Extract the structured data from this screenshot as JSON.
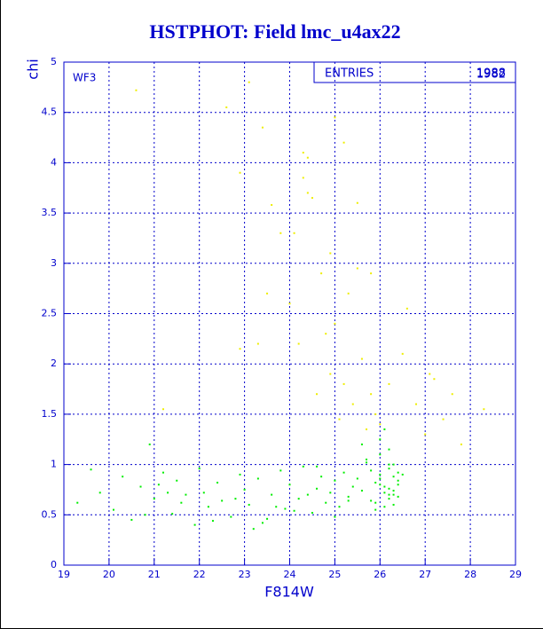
{
  "chart_data": {
    "type": "scatter",
    "title": "HSTPHOT: Field lmc_u4ax22",
    "x_label": "F814W",
    "y_label": "chi",
    "annotation": "WF3",
    "entries_label": "ENTRIES",
    "entries": [
      "1988",
      "1982"
    ],
    "xlim": [
      19,
      29
    ],
    "ylim": [
      0,
      5
    ],
    "xticks": [
      19,
      20,
      21,
      22,
      23,
      24,
      25,
      26,
      27,
      28,
      29
    ],
    "yticks": [
      0,
      0.5,
      1,
      1.5,
      2,
      2.5,
      3,
      3.5,
      4,
      4.5,
      5
    ],
    "grid": true,
    "series": [
      {
        "color": "#00ee00",
        "x": [
          19.3,
          19.6,
          19.8,
          20.1,
          20.3,
          20.5,
          20.7,
          20.9,
          21.0,
          21.2,
          21.4,
          21.5,
          21.7,
          21.9,
          22.0,
          22.2,
          22.4,
          22.5,
          22.7,
          22.9,
          23.0,
          23.1,
          23.3,
          23.4,
          23.6,
          23.8,
          23.9,
          24.0,
          24.2,
          24.3,
          24.5,
          24.6,
          24.7,
          24.8,
          24.9,
          25.0,
          25.1,
          25.2,
          25.3,
          25.4,
          25.5,
          25.6,
          25.7,
          25.8,
          25.9,
          26.0,
          26.1,
          26.2,
          26.3,
          26.4,
          26.0,
          26.1,
          26.2,
          26.3,
          26.4,
          25.9,
          26.0,
          26.2,
          26.3,
          26.1,
          25.8,
          25.9,
          26.0,
          26.2,
          26.3,
          26.4,
          26.1,
          25.7,
          26.0,
          26.2,
          20.8,
          21.6,
          22.3,
          23.2,
          24.1,
          24.4,
          25.0,
          23.7,
          22.8,
          21.3,
          21.1,
          22.1,
          23.5,
          24.6,
          25.3,
          25.6,
          26.5,
          26.4,
          26.3,
          26.2
        ],
        "values": [
          0.62,
          0.95,
          0.72,
          0.55,
          0.88,
          0.45,
          0.78,
          1.2,
          0.66,
          0.92,
          0.51,
          0.84,
          0.7,
          0.4,
          0.96,
          0.58,
          0.82,
          0.64,
          0.48,
          0.9,
          0.75,
          0.6,
          0.86,
          0.42,
          0.7,
          0.94,
          0.56,
          0.8,
          0.66,
          0.98,
          0.52,
          0.76,
          0.88,
          0.62,
          0.72,
          0.84,
          0.58,
          0.92,
          0.68,
          0.78,
          0.86,
          0.74,
          1.05,
          0.64,
          0.82,
          0.9,
          0.72,
          0.96,
          0.6,
          0.84,
          1.1,
          0.78,
          0.66,
          1.0,
          0.92,
          0.55,
          1.25,
          0.7,
          0.88,
          1.35,
          0.94,
          0.62,
          0.8,
          1.15,
          0.74,
          0.68,
          0.58,
          1.02,
          0.86,
          0.76,
          0.5,
          0.62,
          0.44,
          0.36,
          0.54,
          0.7,
          0.48,
          0.58,
          0.66,
          0.72,
          0.8,
          0.72,
          0.46,
          0.98,
          0.64,
          1.2,
          0.9,
          0.8,
          0.7,
          1.0
        ]
      },
      {
        "color": "#eeee00",
        "x": [
          20.6,
          21.2,
          22.6,
          22.9,
          23.1,
          23.3,
          23.4,
          23.6,
          23.8,
          24.0,
          24.2,
          24.3,
          24.4,
          24.5,
          24.6,
          24.7,
          24.8,
          24.9,
          25.0,
          25.1,
          25.2,
          25.3,
          25.4,
          25.5,
          25.6,
          25.7,
          25.8,
          25.9,
          26.0,
          26.2,
          26.6,
          26.8,
          27.0,
          27.2,
          27.4,
          27.6,
          27.8,
          28.3,
          24.3,
          24.4,
          25.2,
          25.5,
          25.0,
          24.9,
          25.8,
          23.5,
          22.9,
          24.1,
          26.5,
          27.1
        ],
        "values": [
          4.72,
          1.55,
          4.55,
          2.15,
          4.8,
          2.2,
          4.35,
          3.58,
          3.3,
          2.6,
          2.2,
          3.85,
          4.05,
          3.65,
          1.7,
          2.9,
          2.3,
          1.9,
          2.4,
          1.45,
          1.8,
          2.7,
          1.6,
          2.95,
          2.05,
          1.35,
          1.7,
          1.5,
          1.4,
          1.8,
          2.55,
          1.6,
          1.3,
          1.85,
          1.45,
          1.7,
          1.2,
          1.55,
          4.1,
          3.7,
          4.2,
          3.6,
          4.45,
          3.1,
          2.9,
          2.7,
          3.9,
          3.3,
          2.1,
          1.9
        ]
      }
    ]
  }
}
